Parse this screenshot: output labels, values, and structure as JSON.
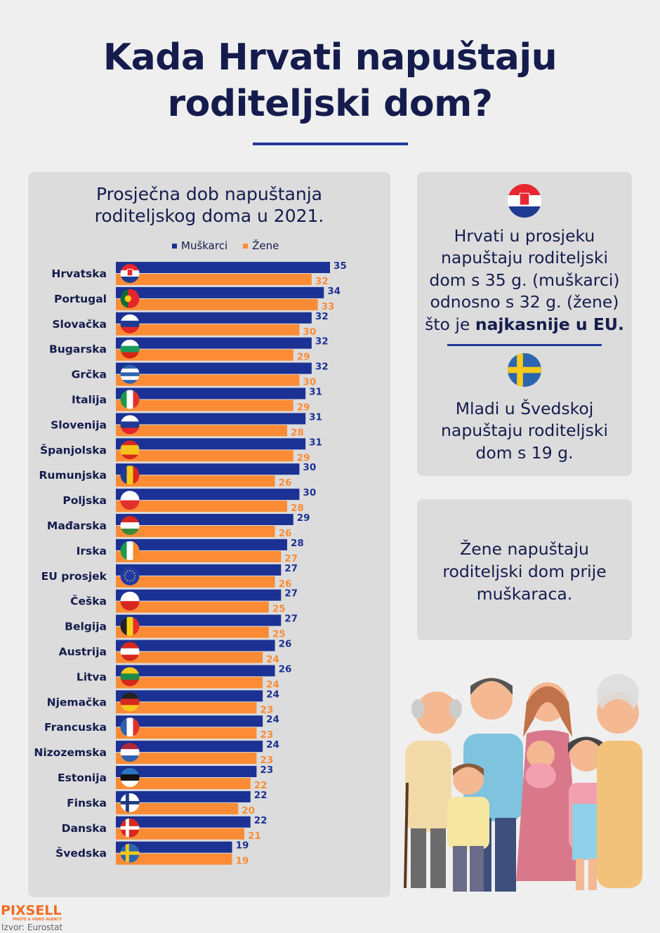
{
  "title": {
    "line1": "Kada Hrvati napuštaju",
    "line2": "roditeljski dom?"
  },
  "left_panel": {
    "subtitle_line1": "Prosječna dob napuštanja",
    "subtitle_line2": "roditeljskog doma u 2021."
  },
  "chart_data": {
    "type": "bar",
    "orientation": "horizontal",
    "title": "Prosječna dob napuštanja roditeljskog doma u 2021.",
    "legend_position": "top",
    "grid": false,
    "xlim": [
      0,
      35
    ],
    "categories": [
      "Hrvatska",
      "Portugal",
      "Slovačka",
      "Bugarska",
      "Grčka",
      "Italija",
      "Slovenija",
      "Španjolska",
      "Rumunjska",
      "Poljska",
      "Mađarska",
      "Irska",
      "EU prosjek",
      "Češka",
      "Belgija",
      "Austrija",
      "Litva",
      "Njemačka",
      "Francuska",
      "Nizozemska",
      "Estonija",
      "Finska",
      "Danska",
      "Švedska"
    ],
    "flag_icons": [
      "flag-croatia",
      "flag-portugal",
      "flag-slovakia",
      "flag-bulgaria",
      "flag-greece",
      "flag-italy",
      "flag-slovenia",
      "flag-spain",
      "flag-romania",
      "flag-poland",
      "flag-hungary",
      "flag-ireland",
      "flag-eu",
      "flag-czechia",
      "flag-belgium",
      "flag-austria",
      "flag-lithuania",
      "flag-germany",
      "flag-france",
      "flag-netherlands",
      "flag-estonia",
      "flag-finland",
      "flag-denmark",
      "flag-sweden"
    ],
    "series": [
      {
        "name": "Muškarci",
        "color": "#1b3193",
        "values": [
          35,
          34,
          32,
          32,
          32,
          31,
          31,
          31,
          30,
          30,
          29,
          28,
          27,
          27,
          27,
          26,
          26,
          24,
          24,
          24,
          23,
          22,
          22,
          19
        ]
      },
      {
        "name": "Žene",
        "color": "#fb8c35",
        "values": [
          32,
          33,
          30,
          29,
          30,
          29,
          28,
          29,
          26,
          28,
          26,
          27,
          26,
          25,
          25,
          24,
          24,
          23,
          23,
          23,
          22,
          20,
          21,
          19
        ]
      }
    ]
  },
  "right_panel1": {
    "flag_top": "flag-croatia",
    "lines": [
      "Hrvati u prosjeku",
      "napuštaju roditeljski",
      "dom s 35 g. (muškarci)",
      "odnosno  s 32 g. (žene)"
    ],
    "line5_prefix": "što je ",
    "line5_bold": "najkasnije u EU.",
    "flag_bottom": "flag-sweden",
    "lines2": [
      "Mladi u Švedskoj",
      "napuštaju roditeljski",
      "dom s 19 g."
    ]
  },
  "right_panel2": {
    "lines": [
      "Žene napuštaju",
      "roditeljski dom prije",
      "muškaraca."
    ]
  },
  "illustration": "family-illustration",
  "footer": {
    "logo": "PIXSELL",
    "logo_sub": "PHOTO & VIDEO AGENCY",
    "source": "Izvor: Eurostat"
  },
  "colors": {
    "navy": "#151c4d",
    "blue": "#1b3193",
    "orange": "#fb8c35",
    "panel": "#dcdcdc"
  }
}
